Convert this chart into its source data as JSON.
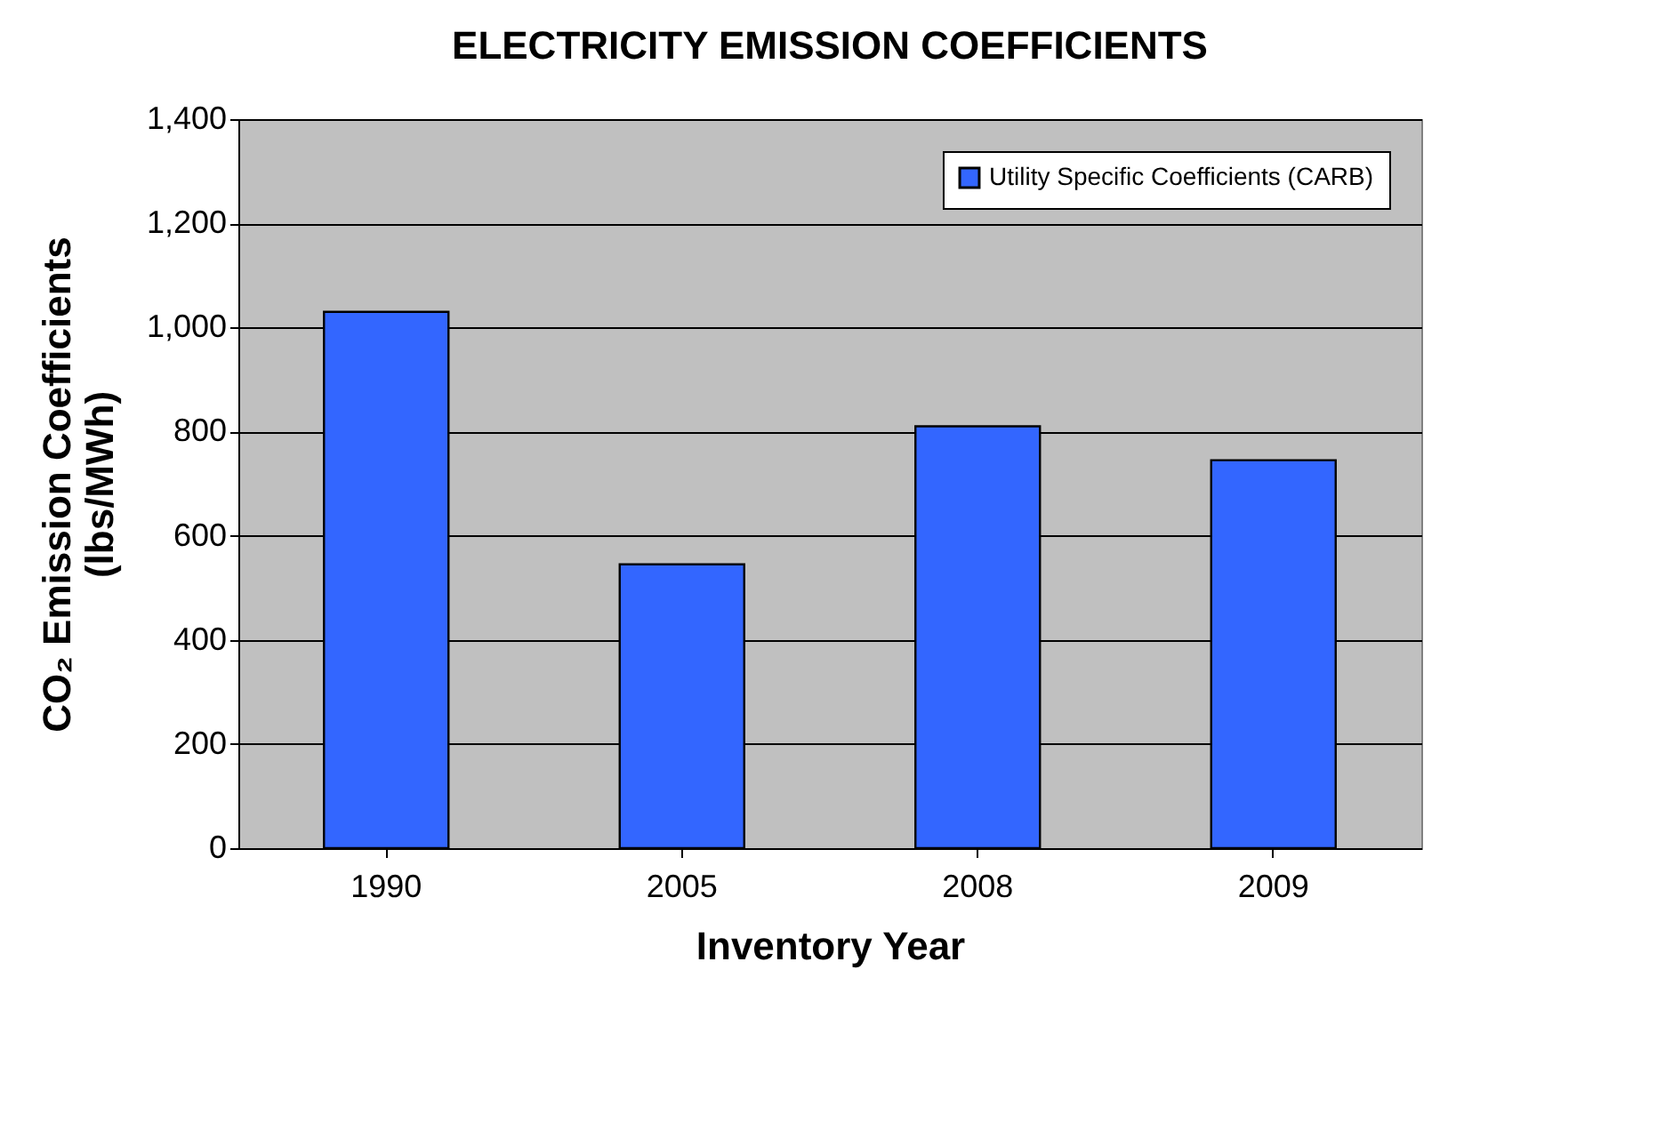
{
  "chart_data": {
    "type": "bar",
    "title": "ELECTRICITY EMISSION COEFFICIENTS",
    "xlabel": "Inventory Year",
    "ylabel": "CO₂ Emission Coefficients (lbs/MWh)",
    "categories": [
      "1990",
      "2005",
      "2008",
      "2009"
    ],
    "series": [
      {
        "name": "Utility Specific Coefficients (CARB)",
        "color": "#3366ff",
        "values": [
          1030,
          545,
          810,
          745
        ]
      }
    ],
    "ylim": [
      0,
      1400
    ],
    "yticks": [
      0,
      200,
      400,
      600,
      800,
      {
        "value": 1000,
        "label": "1,000"
      },
      {
        "value": 1200,
        "label": "1,200"
      },
      {
        "value": 1400,
        "label": "1,400"
      }
    ],
    "grid": "y",
    "legend": "top right"
  }
}
